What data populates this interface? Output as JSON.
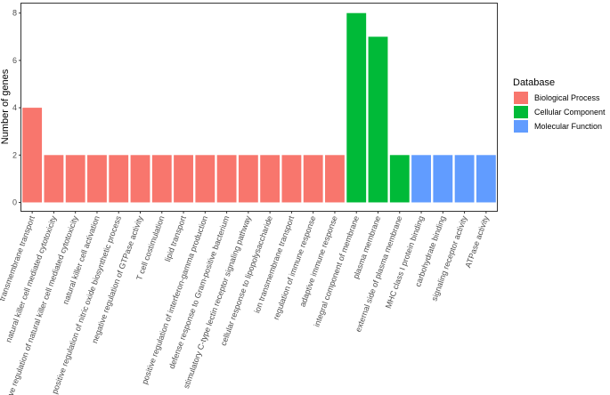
{
  "chart_data": {
    "type": "bar",
    "title": "",
    "xlabel": "",
    "ylabel": "Number of genes",
    "ylim": [
      0,
      8.3
    ],
    "yticks": [
      0,
      2,
      4,
      6,
      8
    ],
    "grid": false,
    "legend_placement": "right",
    "legend_title": "Database",
    "series": [
      {
        "name": "Biological Process",
        "color": "#F8766D"
      },
      {
        "name": "Cellular Component",
        "color": "#00BA38"
      },
      {
        "name": "Molecular Function",
        "color": "#619CFF"
      }
    ],
    "bars": [
      {
        "label": "transmembrane transport",
        "value": 4,
        "series": 0
      },
      {
        "label": "natural killer cell mediated cytotoxicity",
        "value": 2,
        "series": 0
      },
      {
        "label": "positive regulation of natural killer cell mediated cytotoxicity",
        "value": 2,
        "series": 0
      },
      {
        "label": "natural killer cell activation",
        "value": 2,
        "series": 0
      },
      {
        "label": "positive regulation of nitric oxide biosynthetic process",
        "value": 2,
        "series": 0
      },
      {
        "label": "negative regulation of GTPase activity",
        "value": 2,
        "series": 0
      },
      {
        "label": "T cell costimulation",
        "value": 2,
        "series": 0
      },
      {
        "label": "lipid transport",
        "value": 2,
        "series": 0
      },
      {
        "label": "positive regulation of interferon-gamma production",
        "value": 2,
        "series": 0
      },
      {
        "label": "defense response to Gram-positive bacterium",
        "value": 2,
        "series": 0
      },
      {
        "label": "stimulatory C-type lectin receptor signaling pathway",
        "value": 2,
        "series": 0
      },
      {
        "label": "cellular response to lipopolysaccharide",
        "value": 2,
        "series": 0
      },
      {
        "label": "ion transmembrane transport",
        "value": 2,
        "series": 0
      },
      {
        "label": "regulation of immune response",
        "value": 2,
        "series": 0
      },
      {
        "label": "adaptive immune response",
        "value": 2,
        "series": 0
      },
      {
        "label": "integral component of membrane",
        "value": 8,
        "series": 1
      },
      {
        "label": "plasma membrane",
        "value": 7,
        "series": 1
      },
      {
        "label": "external side of plasma membrane",
        "value": 2,
        "series": 1
      },
      {
        "label": "MHC class I protein binding",
        "value": 2,
        "series": 2
      },
      {
        "label": "carbohydrate binding",
        "value": 2,
        "series": 2
      },
      {
        "label": "signaling receptor activity",
        "value": 2,
        "series": 2
      },
      {
        "label": "ATPase activity",
        "value": 2,
        "series": 2
      }
    ]
  }
}
